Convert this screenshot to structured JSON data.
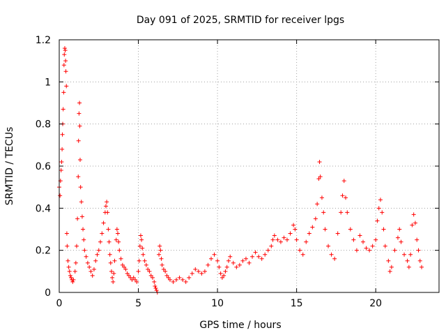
{
  "chart_data": {
    "type": "scatter",
    "title": "Day 091 of 2025, SRMTID for receiver lpgs",
    "xlabel": "GPS time / hours",
    "ylabel": "SRMTID / TECUs",
    "xlim": [
      0,
      24
    ],
    "ylim": [
      0,
      1.2
    ],
    "grid": true,
    "x_ticks": [
      0,
      5,
      10,
      15,
      20
    ],
    "x_tick_labels": [
      "0",
      "5",
      "10",
      "15",
      "20"
    ],
    "y_ticks": [
      0,
      0.2,
      0.4,
      0.6,
      0.8,
      1.0,
      1.2
    ],
    "y_tick_labels": [
      "0",
      "0.2",
      "0.4",
      "0.6",
      "0.8",
      "1",
      "1.2"
    ],
    "series": [
      {
        "name": "SRMTID",
        "marker": "plus",
        "color": "#ff0000",
        "points": [
          [
            0.0,
            0.5
          ],
          [
            0.05,
            0.46
          ],
          [
            0.08,
            0.53
          ],
          [
            0.12,
            0.58
          ],
          [
            0.15,
            0.62
          ],
          [
            0.18,
            0.68
          ],
          [
            0.2,
            0.75
          ],
          [
            0.22,
            0.8
          ],
          [
            0.25,
            0.87
          ],
          [
            0.28,
            0.95
          ],
          [
            0.3,
            1.08
          ],
          [
            0.32,
            1.13
          ],
          [
            0.35,
            1.16
          ],
          [
            0.38,
            1.15
          ],
          [
            0.4,
            1.1
          ],
          [
            0.42,
            1.05
          ],
          [
            0.45,
            0.98
          ],
          [
            0.48,
            0.28
          ],
          [
            0.5,
            0.22
          ],
          [
            0.55,
            0.15
          ],
          [
            0.6,
            0.12
          ],
          [
            0.65,
            0.1
          ],
          [
            0.7,
            0.08
          ],
          [
            0.75,
            0.07
          ],
          [
            0.8,
            0.06
          ],
          [
            0.85,
            0.05
          ],
          [
            0.9,
            0.06
          ],
          [
            1.0,
            0.1
          ],
          [
            1.05,
            0.14
          ],
          [
            1.1,
            0.22
          ],
          [
            1.15,
            0.35
          ],
          [
            1.2,
            0.55
          ],
          [
            1.22,
            0.72
          ],
          [
            1.25,
            0.85
          ],
          [
            1.28,
            0.9
          ],
          [
            1.3,
            0.79
          ],
          [
            1.32,
            0.63
          ],
          [
            1.35,
            0.5
          ],
          [
            1.4,
            0.43
          ],
          [
            1.45,
            0.36
          ],
          [
            1.5,
            0.3
          ],
          [
            1.55,
            0.25
          ],
          [
            1.6,
            0.2
          ],
          [
            1.7,
            0.17
          ],
          [
            1.8,
            0.14
          ],
          [
            1.9,
            0.12
          ],
          [
            2.0,
            0.1
          ],
          [
            2.1,
            0.08
          ],
          [
            2.2,
            0.11
          ],
          [
            2.3,
            0.15
          ],
          [
            2.4,
            0.18
          ],
          [
            2.5,
            0.2
          ],
          [
            2.6,
            0.24
          ],
          [
            2.7,
            0.28
          ],
          [
            2.8,
            0.33
          ],
          [
            2.9,
            0.38
          ],
          [
            2.95,
            0.41
          ],
          [
            3.0,
            0.43
          ],
          [
            3.05,
            0.38
          ],
          [
            3.1,
            0.3
          ],
          [
            3.15,
            0.24
          ],
          [
            3.2,
            0.18
          ],
          [
            3.25,
            0.14
          ],
          [
            3.3,
            0.1
          ],
          [
            3.35,
            0.07
          ],
          [
            3.4,
            0.05
          ],
          [
            3.45,
            0.09
          ],
          [
            3.5,
            0.15
          ],
          [
            3.6,
            0.25
          ],
          [
            3.65,
            0.3
          ],
          [
            3.7,
            0.28
          ],
          [
            3.75,
            0.24
          ],
          [
            3.8,
            0.2
          ],
          [
            3.9,
            0.16
          ],
          [
            4.0,
            0.13
          ],
          [
            4.1,
            0.12
          ],
          [
            4.2,
            0.11
          ],
          [
            4.3,
            0.09
          ],
          [
            4.4,
            0.08
          ],
          [
            4.5,
            0.07
          ],
          [
            4.6,
            0.06
          ],
          [
            4.7,
            0.07
          ],
          [
            4.8,
            0.06
          ],
          [
            4.9,
            0.05
          ],
          [
            5.0,
            0.1
          ],
          [
            5.05,
            0.15
          ],
          [
            5.1,
            0.22
          ],
          [
            5.15,
            0.27
          ],
          [
            5.2,
            0.25
          ],
          [
            5.25,
            0.21
          ],
          [
            5.3,
            0.18
          ],
          [
            5.4,
            0.15
          ],
          [
            5.5,
            0.13
          ],
          [
            5.6,
            0.11
          ],
          [
            5.7,
            0.1
          ],
          [
            5.8,
            0.08
          ],
          [
            5.9,
            0.07
          ],
          [
            6.0,
            0.05
          ],
          [
            6.05,
            0.03
          ],
          [
            6.1,
            0.02
          ],
          [
            6.15,
            0.01
          ],
          [
            6.2,
            0.0
          ],
          [
            6.3,
            0.18
          ],
          [
            6.35,
            0.22
          ],
          [
            6.4,
            0.2
          ],
          [
            6.45,
            0.16
          ],
          [
            6.5,
            0.13
          ],
          [
            6.6,
            0.11
          ],
          [
            6.7,
            0.1
          ],
          [
            6.8,
            0.08
          ],
          [
            6.9,
            0.07
          ],
          [
            7.0,
            0.06
          ],
          [
            7.2,
            0.05
          ],
          [
            7.4,
            0.06
          ],
          [
            7.6,
            0.07
          ],
          [
            7.8,
            0.06
          ],
          [
            8.0,
            0.05
          ],
          [
            8.2,
            0.07
          ],
          [
            8.4,
            0.09
          ],
          [
            8.6,
            0.11
          ],
          [
            8.8,
            0.1
          ],
          [
            9.0,
            0.09
          ],
          [
            9.2,
            0.1
          ],
          [
            9.4,
            0.13
          ],
          [
            9.6,
            0.16
          ],
          [
            9.8,
            0.18
          ],
          [
            10.0,
            0.15
          ],
          [
            10.1,
            0.12
          ],
          [
            10.2,
            0.09
          ],
          [
            10.3,
            0.07
          ],
          [
            10.4,
            0.08
          ],
          [
            10.5,
            0.1
          ],
          [
            10.6,
            0.12
          ],
          [
            10.7,
            0.15
          ],
          [
            10.8,
            0.17
          ],
          [
            11.0,
            0.14
          ],
          [
            11.2,
            0.12
          ],
          [
            11.4,
            0.13
          ],
          [
            11.6,
            0.15
          ],
          [
            11.8,
            0.16
          ],
          [
            12.0,
            0.14
          ],
          [
            12.2,
            0.17
          ],
          [
            12.4,
            0.19
          ],
          [
            12.6,
            0.17
          ],
          [
            12.8,
            0.16
          ],
          [
            13.0,
            0.18
          ],
          [
            13.2,
            0.2
          ],
          [
            13.4,
            0.22
          ],
          [
            13.5,
            0.25
          ],
          [
            13.6,
            0.27
          ],
          [
            13.8,
            0.25
          ],
          [
            14.0,
            0.24
          ],
          [
            14.2,
            0.26
          ],
          [
            14.4,
            0.25
          ],
          [
            14.6,
            0.28
          ],
          [
            14.8,
            0.32
          ],
          [
            14.9,
            0.3
          ],
          [
            15.0,
            0.25
          ],
          [
            15.2,
            0.2
          ],
          [
            15.4,
            0.18
          ],
          [
            15.6,
            0.24
          ],
          [
            15.8,
            0.28
          ],
          [
            16.0,
            0.31
          ],
          [
            16.2,
            0.35
          ],
          [
            16.3,
            0.42
          ],
          [
            16.4,
            0.54
          ],
          [
            16.45,
            0.62
          ],
          [
            16.5,
            0.55
          ],
          [
            16.6,
            0.45
          ],
          [
            16.7,
            0.38
          ],
          [
            16.8,
            0.3
          ],
          [
            17.0,
            0.22
          ],
          [
            17.2,
            0.18
          ],
          [
            17.4,
            0.16
          ],
          [
            17.6,
            0.28
          ],
          [
            17.8,
            0.38
          ],
          [
            17.9,
            0.46
          ],
          [
            18.0,
            0.53
          ],
          [
            18.1,
            0.45
          ],
          [
            18.2,
            0.38
          ],
          [
            18.4,
            0.3
          ],
          [
            18.6,
            0.25
          ],
          [
            18.8,
            0.2
          ],
          [
            19.0,
            0.27
          ],
          [
            19.2,
            0.24
          ],
          [
            19.4,
            0.21
          ],
          [
            19.6,
            0.2
          ],
          [
            19.8,
            0.22
          ],
          [
            20.0,
            0.25
          ],
          [
            20.1,
            0.34
          ],
          [
            20.2,
            0.4
          ],
          [
            20.3,
            0.44
          ],
          [
            20.4,
            0.38
          ],
          [
            20.5,
            0.3
          ],
          [
            20.6,
            0.22
          ],
          [
            20.8,
            0.15
          ],
          [
            20.9,
            0.1
          ],
          [
            21.0,
            0.12
          ],
          [
            21.2,
            0.2
          ],
          [
            21.4,
            0.26
          ],
          [
            21.5,
            0.3
          ],
          [
            21.6,
            0.24
          ],
          [
            21.8,
            0.18
          ],
          [
            22.0,
            0.15
          ],
          [
            22.1,
            0.12
          ],
          [
            22.2,
            0.18
          ],
          [
            22.3,
            0.32
          ],
          [
            22.4,
            0.37
          ],
          [
            22.5,
            0.33
          ],
          [
            22.6,
            0.25
          ],
          [
            22.7,
            0.2
          ],
          [
            22.8,
            0.15
          ],
          [
            22.9,
            0.12
          ]
        ]
      }
    ]
  }
}
